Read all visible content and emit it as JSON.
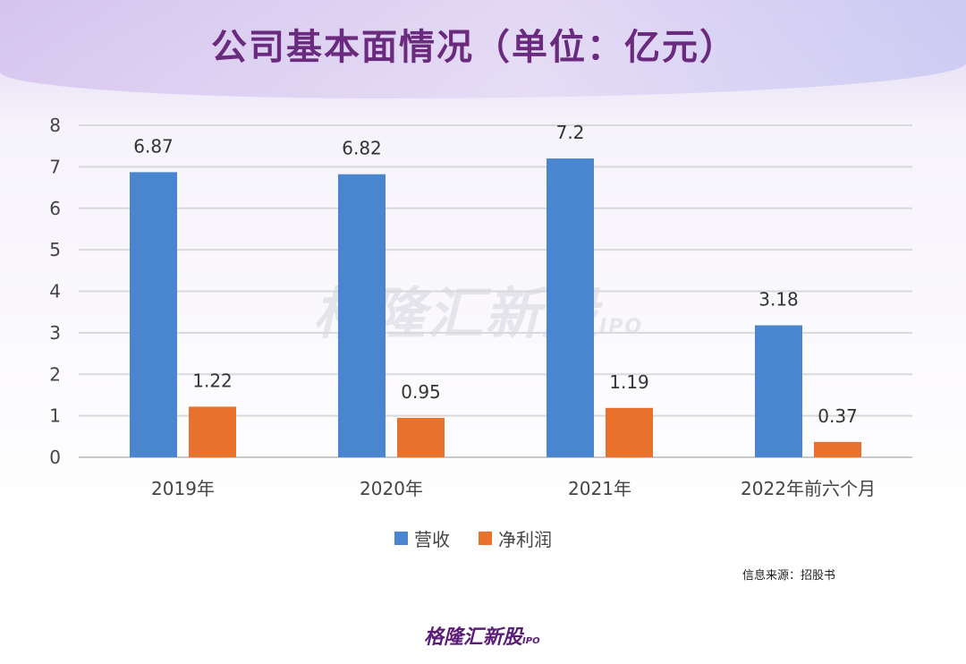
{
  "title": "公司基本面情况（单位：亿元）",
  "watermark": "格隆汇新股",
  "watermark_tag": "IPO",
  "source": "信息来源：招股书",
  "logo": "格隆汇新股",
  "logo_tag": "IPO",
  "chart_data": {
    "type": "bar",
    "categories": [
      "2019年",
      "2020年",
      "2021年",
      "2022年前六个月"
    ],
    "series": [
      {
        "name": "营收",
        "values": [
          6.87,
          6.82,
          7.2,
          3.18
        ],
        "labels": [
          "6.87",
          "6.82",
          "7.2",
          "3.18"
        ],
        "color": "#4a86d0"
      },
      {
        "name": "净利润",
        "values": [
          1.22,
          0.95,
          1.19,
          0.37
        ],
        "labels": [
          "1.22",
          "0.95",
          "1.19",
          "0.37"
        ],
        "color": "#e8722c"
      }
    ],
    "ylim": [
      0,
      8
    ],
    "yticks": [
      "0",
      "1",
      "2",
      "3",
      "4",
      "5",
      "6",
      "7",
      "8"
    ],
    "grid": true,
    "legend": "bottom-center"
  }
}
